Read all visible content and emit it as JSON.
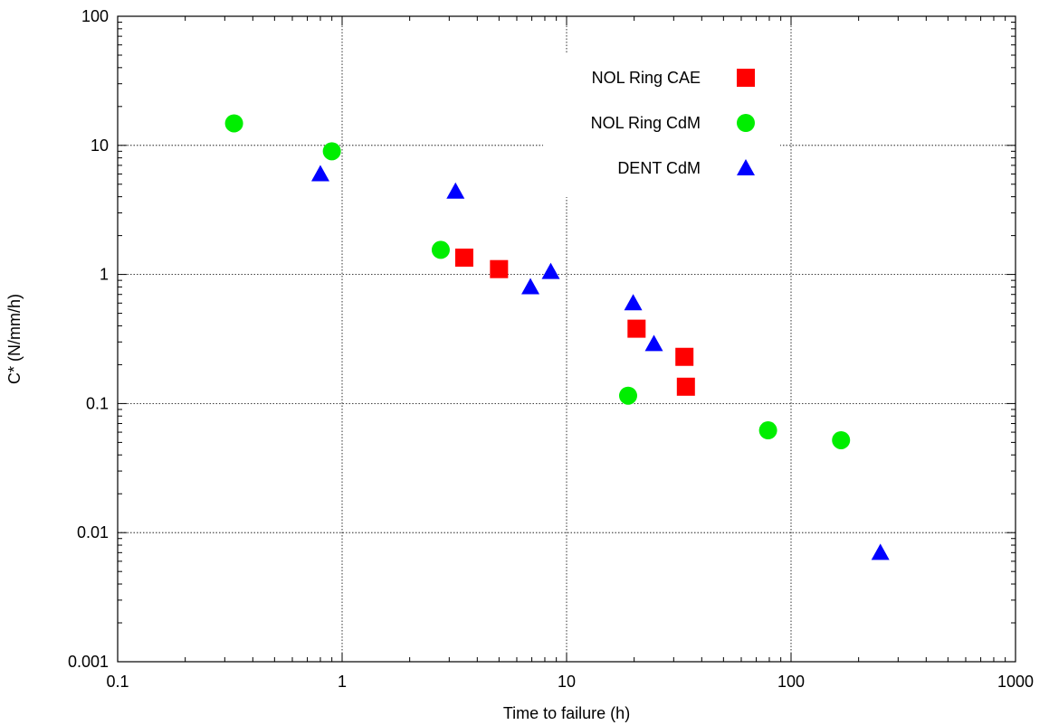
{
  "chart_data": {
    "type": "scatter",
    "title": "",
    "xlabel": "Time to failure (h)",
    "ylabel": "C* (N/mm/h)",
    "xscale": "log",
    "yscale": "log",
    "xlim": [
      0.1,
      1000
    ],
    "ylim": [
      0.001,
      100
    ],
    "grid": true,
    "legend_position": "top-right",
    "x_ticks": [
      "0.1",
      "1",
      "10",
      "100",
      "1000"
    ],
    "y_ticks": [
      "0.001",
      "0.01",
      "0.1",
      "1",
      "10",
      "100"
    ],
    "series": [
      {
        "name": "NOL Ring CAE",
        "marker": "square",
        "color": "#ff0000",
        "points": [
          [
            3.5,
            1.35
          ],
          [
            5.0,
            1.1
          ],
          [
            20.5,
            0.38
          ],
          [
            33.5,
            0.23
          ],
          [
            34.0,
            0.135
          ]
        ]
      },
      {
        "name": "NOL Ring CdM",
        "marker": "circle",
        "color": "#00ee00",
        "points": [
          [
            0.33,
            14.8
          ],
          [
            0.9,
            9.0
          ],
          [
            2.75,
            1.55
          ],
          [
            18.8,
            0.115
          ],
          [
            79.0,
            0.062
          ],
          [
            167.0,
            0.052
          ]
        ]
      },
      {
        "name": "DENT CdM",
        "marker": "triangle",
        "color": "#0000ff",
        "points": [
          [
            0.8,
            6.0
          ],
          [
            3.2,
            4.4
          ],
          [
            6.9,
            0.8
          ],
          [
            8.5,
            1.05
          ],
          [
            19.8,
            0.6
          ],
          [
            24.5,
            0.29
          ],
          [
            250.0,
            0.007
          ]
        ]
      }
    ]
  }
}
